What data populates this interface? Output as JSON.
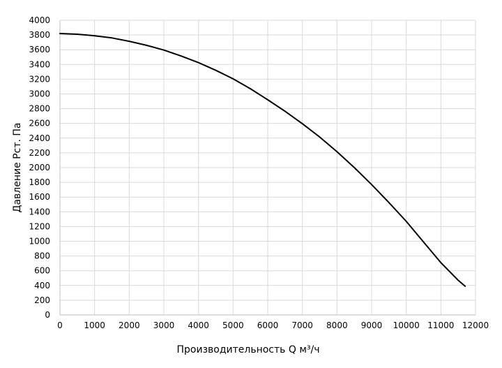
{
  "chart_data": {
    "type": "line",
    "title": "",
    "xlabel": "Производительность Q м³/ч",
    "ylabel": "Давление Рст. Па",
    "xlim": [
      0,
      12000
    ],
    "ylim": [
      0,
      4000
    ],
    "xticks": [
      0,
      1000,
      2000,
      3000,
      4000,
      5000,
      6000,
      7000,
      8000,
      9000,
      10000,
      11000,
      12000
    ],
    "yticks": [
      0,
      200,
      400,
      600,
      800,
      1000,
      1200,
      1400,
      1600,
      1800,
      2000,
      2200,
      2400,
      2600,
      2800,
      3000,
      3200,
      3400,
      3600,
      3800,
      4000
    ],
    "grid": true,
    "legend": "none",
    "series": [
      {
        "color": "#000000",
        "x": [
          0,
          500,
          1000,
          1500,
          2000,
          2500,
          3000,
          3500,
          4000,
          4500,
          5000,
          5500,
          6000,
          6500,
          7000,
          7500,
          8000,
          8500,
          9000,
          9500,
          10000,
          10500,
          11000,
          11500,
          11700
        ],
        "y": [
          3820,
          3810,
          3790,
          3760,
          3715,
          3660,
          3595,
          3515,
          3425,
          3320,
          3205,
          3070,
          2920,
          2765,
          2595,
          2415,
          2215,
          2000,
          1770,
          1525,
          1270,
          990,
          710,
          470,
          390
        ]
      }
    ]
  }
}
